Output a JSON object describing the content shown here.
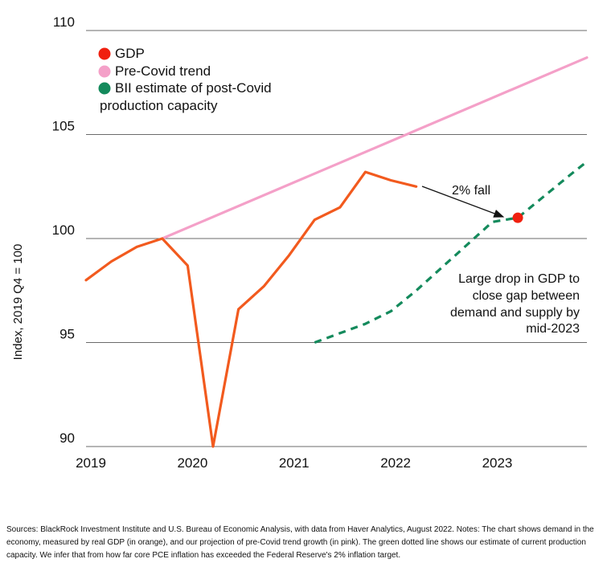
{
  "chart_data": {
    "type": "line",
    "title": "",
    "ylabel": "Index, 2019 Q4 = 100",
    "xlabel": "",
    "ylim": [
      90,
      110
    ],
    "xlim": [
      2019.0,
      2023.93
    ],
    "yticks": [
      90,
      95,
      100,
      105,
      110
    ],
    "xticks": [
      {
        "value": 2019,
        "label": "2019"
      },
      {
        "value": 2020,
        "label": "2020"
      },
      {
        "value": 2021,
        "label": "2021"
      },
      {
        "value": 2022,
        "label": "2022"
      },
      {
        "value": 2023,
        "label": "2023"
      }
    ],
    "grid": "horizontal",
    "legend_position": "top-left",
    "legend": [
      {
        "label": "GDP",
        "color": "#f0200f"
      },
      {
        "label": "Pre-Covid trend",
        "color": "#f4a0c8"
      },
      {
        "label": "BII estimate of post-Covid production capacity",
        "color": "#148a5c"
      }
    ],
    "series": [
      {
        "name": "GDP",
        "color": "#f25a1e",
        "style": "solid",
        "x": [
          2019.0,
          2019.25,
          2019.5,
          2019.75,
          2020.0,
          2020.25,
          2020.5,
          2020.75,
          2021.0,
          2021.25,
          2021.5,
          2021.75,
          2022.0,
          2022.25
        ],
        "y": [
          98.0,
          98.9,
          99.6,
          100.0,
          98.7,
          90.0,
          96.6,
          97.7,
          99.2,
          100.9,
          101.5,
          103.2,
          102.8,
          102.5
        ]
      },
      {
        "name": "Pre-Covid trend",
        "color": "#f4a0c8",
        "style": "solid",
        "x": [
          2019.75,
          2023.93
        ],
        "y": [
          100.0,
          108.7
        ]
      },
      {
        "name": "BII estimate of post-Covid production capacity",
        "color": "#148a5c",
        "style": "dashed",
        "x": [
          2021.25,
          2021.75,
          2022.0,
          2022.25,
          2022.5,
          2022.75,
          2023.0,
          2023.25,
          2023.5,
          2023.75,
          2023.93
        ],
        "y": [
          95.0,
          95.9,
          96.5,
          97.5,
          98.6,
          99.7,
          100.8,
          101.0,
          102.0,
          103.0,
          103.7
        ]
      }
    ],
    "highlight_point": {
      "x": 2023.25,
      "y": 101.0,
      "color": "#f0200f"
    },
    "annotations": [
      {
        "lines": [
          "2% fall"
        ]
      },
      {
        "lines": [
          "Large drop in GDP to",
          "close gap between",
          "demand and supply by",
          "mid-2023"
        ]
      }
    ]
  },
  "notes": "Sources: BlackRock Investment Institute and U.S. Bureau of Economic Analysis, with data from Haver Analytics, August 2022. Notes: The chart shows demand in the economy, measured by real GDP (in orange), and our projection of pre-Covid trend growth (in pink). The green dotted line shows our estimate of current production capacity. We infer that from how far core PCE inflation has exceeded the Federal Reserve's 2% inflation target."
}
